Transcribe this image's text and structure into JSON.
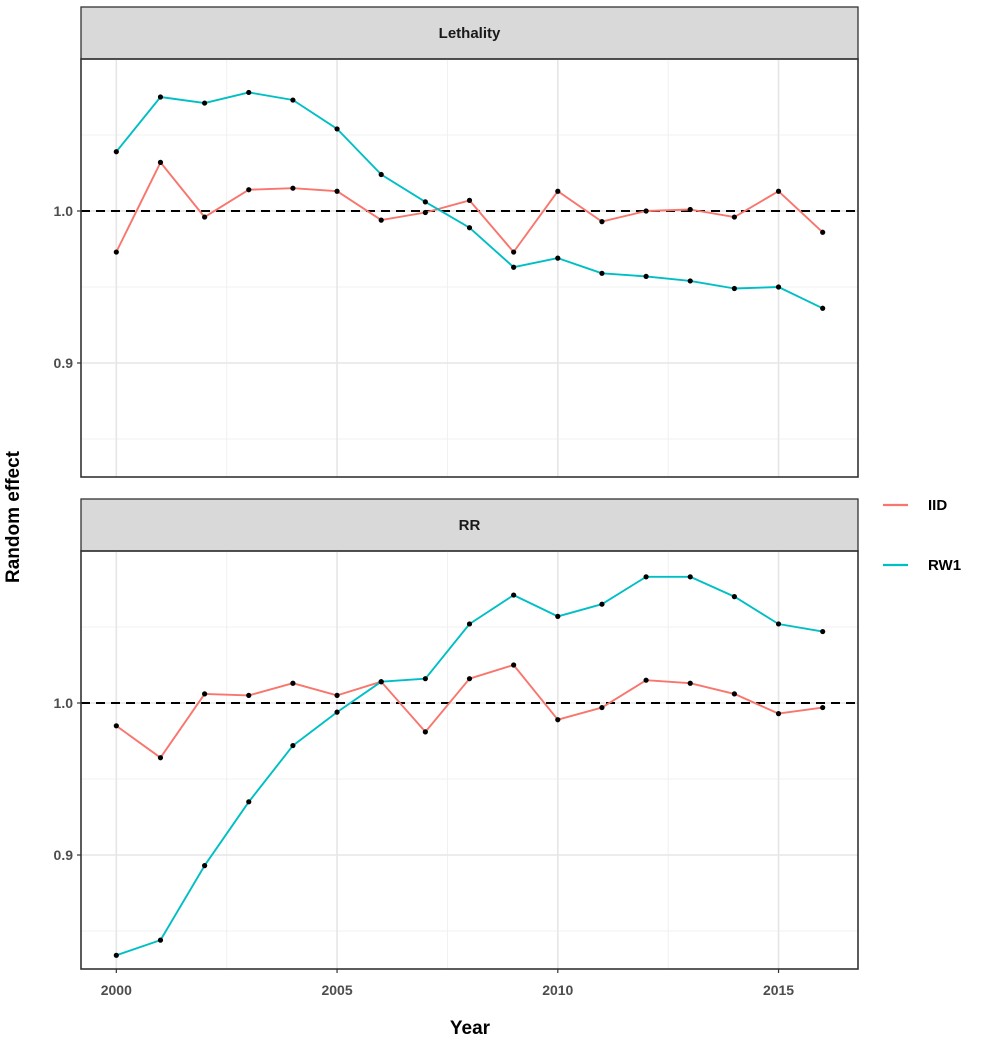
{
  "chart_data": {
    "type": "line",
    "xlabel": "Year",
    "ylabel": "Random effect",
    "x_ticks": [
      2000,
      2005,
      2010,
      2015
    ],
    "x_tick_labels": [
      "2000",
      "2005",
      "2010",
      "2015"
    ],
    "xlim": [
      1999.2,
      2016.8
    ],
    "y_ticks": [
      0.9,
      1.0
    ],
    "y_tick_labels": [
      "0.9",
      "1.0"
    ],
    "reference_line": 1.0,
    "grid": true,
    "legend_position": "right",
    "legend": [
      {
        "name": "IID",
        "color": "#F8766D"
      },
      {
        "name": "RW1",
        "color": "#00BFC4"
      }
    ],
    "panels": [
      {
        "title": "Lethality",
        "ylim": [
          0.825,
          1.1
        ],
        "x": [
          2000,
          2001,
          2002,
          2003,
          2004,
          2005,
          2006,
          2007,
          2008,
          2009,
          2010,
          2011,
          2012,
          2013,
          2014,
          2015,
          2016
        ],
        "series": [
          {
            "name": "IID",
            "color": "#F8766D",
            "values": [
              0.973,
              1.032,
              0.996,
              1.014,
              1.015,
              1.013,
              0.994,
              0.999,
              1.007,
              0.973,
              1.013,
              0.993,
              1.0,
              1.001,
              0.996,
              1.013,
              0.986
            ]
          },
          {
            "name": "RW1",
            "color": "#00BFC4",
            "values": [
              1.039,
              1.075,
              1.071,
              1.078,
              1.073,
              1.054,
              1.024,
              1.006,
              0.989,
              0.963,
              0.969,
              0.959,
              0.957,
              0.954,
              0.949,
              0.95,
              0.936
            ]
          }
        ]
      },
      {
        "title": "RR",
        "ylim": [
          0.825,
          1.1
        ],
        "x": [
          2000,
          2001,
          2002,
          2003,
          2004,
          2005,
          2006,
          2007,
          2008,
          2009,
          2010,
          2011,
          2012,
          2013,
          2014,
          2015,
          2016
        ],
        "series": [
          {
            "name": "IID",
            "color": "#F8766D",
            "values": [
              0.985,
              0.964,
              1.006,
              1.005,
              1.013,
              1.005,
              1.014,
              0.981,
              1.016,
              1.025,
              0.989,
              0.997,
              1.015,
              1.013,
              1.006,
              0.993,
              0.997
            ]
          },
          {
            "name": "RW1",
            "color": "#00BFC4",
            "values": [
              0.834,
              0.844,
              0.893,
              0.935,
              0.972,
              0.994,
              1.014,
              1.016,
              1.052,
              1.071,
              1.057,
              1.065,
              1.083,
              1.083,
              1.07,
              1.052,
              1.047
            ]
          }
        ]
      }
    ]
  }
}
